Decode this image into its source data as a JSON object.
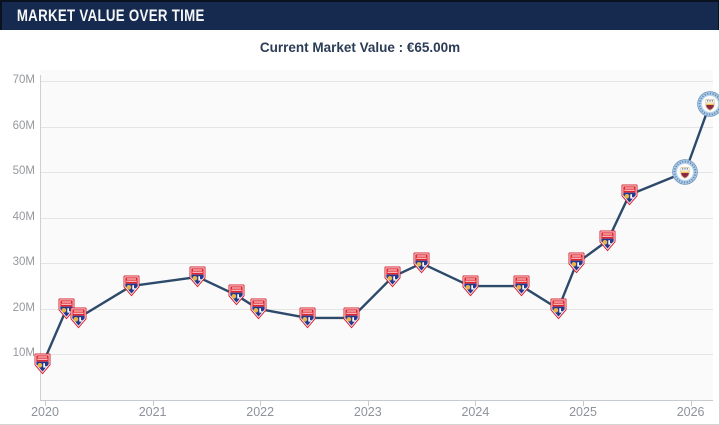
{
  "header": {
    "title": "MARKET VALUE OVER TIME"
  },
  "subtitle": {
    "label": "Current Market Value : €65.00m"
  },
  "colors": {
    "header_bg": "#152a4e",
    "header_text": "#f5f6f8",
    "subtitle_text": "#2b3c55",
    "line": "#2d4a6b",
    "gridline": "#e4e4e4",
    "axis_label": "#96989d",
    "plot_bg": "#fafafa",
    "ol_red": "#e0252f",
    "ol_blue": "#27398c",
    "ol_gold": "#e8b54a",
    "mci_sky_blue": "#a9cbe9",
    "mci_maroon": "#8c2746",
    "mci_gold": "#ecc24d"
  },
  "clubs": {
    "OL": "Olympique Lyonnais",
    "MCI": "Manchester City"
  },
  "chart_data": {
    "type": "line",
    "series_name": "Market value",
    "currency": "EUR",
    "unit": "million",
    "current_value_label": "Current Market Value : €65.00m",
    "y_range": [
      0,
      70
    ],
    "x_range": [
      2019.95,
      2026.25
    ],
    "grid": true,
    "y_ticks": [
      {
        "value": 70,
        "label": "70M"
      },
      {
        "value": 60,
        "label": "60M"
      },
      {
        "value": 50,
        "label": "50M"
      },
      {
        "value": 40,
        "label": "40M"
      },
      {
        "value": 30,
        "label": "30M"
      },
      {
        "value": 20,
        "label": "20M"
      },
      {
        "value": 10,
        "label": "10M"
      }
    ],
    "x_ticks": [
      {
        "value": 2020,
        "label": "2020"
      },
      {
        "value": 2021,
        "label": "2021"
      },
      {
        "value": 2022,
        "label": "2022"
      },
      {
        "value": 2023,
        "label": "2023"
      },
      {
        "value": 2024,
        "label": "2024"
      },
      {
        "value": 2025,
        "label": "2025"
      },
      {
        "value": 2026,
        "label": "2026"
      }
    ],
    "points": [
      {
        "x": 2019.98,
        "value": 8,
        "club": "OL"
      },
      {
        "x": 2020.2,
        "value": 20,
        "club": "OL"
      },
      {
        "x": 2020.31,
        "value": 18,
        "club": "OL"
      },
      {
        "x": 2020.8,
        "value": 25,
        "club": "OL"
      },
      {
        "x": 2021.42,
        "value": 27,
        "club": "OL"
      },
      {
        "x": 2021.78,
        "value": 23,
        "club": "OL"
      },
      {
        "x": 2021.98,
        "value": 20,
        "club": "OL"
      },
      {
        "x": 2022.44,
        "value": 18,
        "club": "OL"
      },
      {
        "x": 2022.85,
        "value": 18,
        "club": "OL"
      },
      {
        "x": 2023.23,
        "value": 27,
        "club": "OL"
      },
      {
        "x": 2023.5,
        "value": 30,
        "club": "OL"
      },
      {
        "x": 2023.95,
        "value": 25,
        "club": "OL"
      },
      {
        "x": 2024.43,
        "value": 25,
        "club": "OL"
      },
      {
        "x": 2024.77,
        "value": 20,
        "club": "OL"
      },
      {
        "x": 2024.94,
        "value": 30,
        "club": "OL"
      },
      {
        "x": 2025.23,
        "value": 35,
        "club": "OL"
      },
      {
        "x": 2025.43,
        "value": 45,
        "club": "OL"
      },
      {
        "x": 2025.95,
        "value": 50,
        "club": "MCI"
      },
      {
        "x": 2026.18,
        "value": 65,
        "club": "MCI"
      }
    ]
  }
}
